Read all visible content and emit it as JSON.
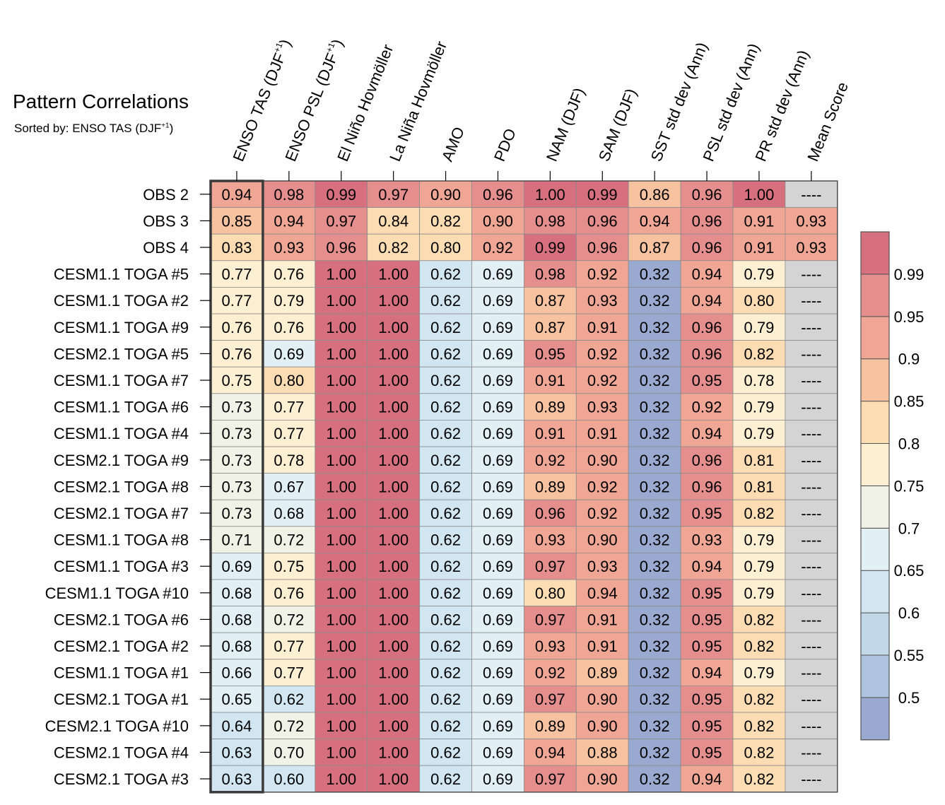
{
  "title": "Pattern Correlations",
  "subtitle": {
    "prefix": "Sorted by: ENSO TAS (DJF",
    "sup": "+1",
    "suffix": ")"
  },
  "chart_data": {
    "type": "heatmap",
    "title": "Pattern Correlations",
    "subtitle": "Sorted by: ENSO TAS (DJF+1)",
    "columns": [
      {
        "text": "ENSO TAS (DJF",
        "sup": "+1",
        "after": ")"
      },
      {
        "text": "ENSO PSL (DJF",
        "sup": "+1",
        "after": ")"
      },
      {
        "text": "El Niño Hovmöller",
        "sup": "",
        "after": ""
      },
      {
        "text": "La Niña Hovmöller",
        "sup": "",
        "after": ""
      },
      {
        "text": "AMO",
        "sup": "",
        "after": ""
      },
      {
        "text": "PDO",
        "sup": "",
        "after": ""
      },
      {
        "text": "NAM (DJF)",
        "sup": "",
        "after": ""
      },
      {
        "text": "SAM (DJF)",
        "sup": "",
        "after": ""
      },
      {
        "text": "SST std dev (Ann)",
        "sup": "",
        "after": ""
      },
      {
        "text": "PSL std dev (Ann)",
        "sup": "",
        "after": ""
      },
      {
        "text": "PR std dev (Ann)",
        "sup": "",
        "after": ""
      },
      {
        "text": "Mean Score",
        "sup": "",
        "after": ""
      }
    ],
    "rows": [
      "OBS 2",
      "OBS 3",
      "OBS 4",
      "CESM1.1 TOGA #5",
      "CESM1.1 TOGA #2",
      "CESM1.1 TOGA #9",
      "CESM2.1 TOGA #5",
      "CESM1.1 TOGA #7",
      "CESM1.1 TOGA #6",
      "CESM1.1 TOGA #4",
      "CESM2.1 TOGA #9",
      "CESM2.1 TOGA #8",
      "CESM2.1 TOGA #7",
      "CESM1.1 TOGA #8",
      "CESM1.1 TOGA #3",
      "CESM1.1 TOGA #10",
      "CESM2.1 TOGA #6",
      "CESM2.1 TOGA #2",
      "CESM1.1 TOGA #1",
      "CESM2.1 TOGA #1",
      "CESM2.1 TOGA #10",
      "CESM2.1 TOGA #4",
      "CESM2.1 TOGA #3"
    ],
    "values": [
      [
        0.94,
        0.98,
        0.99,
        0.97,
        0.9,
        0.96,
        1.0,
        0.99,
        0.86,
        0.96,
        1.0,
        null
      ],
      [
        0.85,
        0.94,
        0.97,
        0.84,
        0.82,
        0.9,
        0.98,
        0.96,
        0.94,
        0.96,
        0.91,
        0.93
      ],
      [
        0.83,
        0.93,
        0.96,
        0.82,
        0.8,
        0.92,
        0.99,
        0.96,
        0.87,
        0.96,
        0.91,
        0.93
      ],
      [
        0.77,
        0.76,
        1.0,
        1.0,
        0.62,
        0.69,
        0.98,
        0.92,
        0.32,
        0.94,
        0.79,
        null
      ],
      [
        0.77,
        0.79,
        1.0,
        1.0,
        0.62,
        0.69,
        0.87,
        0.93,
        0.32,
        0.94,
        0.8,
        null
      ],
      [
        0.76,
        0.76,
        1.0,
        1.0,
        0.62,
        0.69,
        0.87,
        0.91,
        0.32,
        0.96,
        0.79,
        null
      ],
      [
        0.76,
        0.69,
        1.0,
        1.0,
        0.62,
        0.69,
        0.95,
        0.92,
        0.32,
        0.96,
        0.82,
        null
      ],
      [
        0.75,
        0.8,
        1.0,
        1.0,
        0.62,
        0.69,
        0.91,
        0.92,
        0.32,
        0.95,
        0.78,
        null
      ],
      [
        0.73,
        0.77,
        1.0,
        1.0,
        0.62,
        0.69,
        0.89,
        0.93,
        0.32,
        0.92,
        0.79,
        null
      ],
      [
        0.73,
        0.77,
        1.0,
        1.0,
        0.62,
        0.69,
        0.91,
        0.91,
        0.32,
        0.94,
        0.79,
        null
      ],
      [
        0.73,
        0.78,
        1.0,
        1.0,
        0.62,
        0.69,
        0.92,
        0.9,
        0.32,
        0.96,
        0.81,
        null
      ],
      [
        0.73,
        0.67,
        1.0,
        1.0,
        0.62,
        0.69,
        0.89,
        0.92,
        0.32,
        0.96,
        0.81,
        null
      ],
      [
        0.73,
        0.68,
        1.0,
        1.0,
        0.62,
        0.69,
        0.96,
        0.92,
        0.32,
        0.95,
        0.82,
        null
      ],
      [
        0.71,
        0.72,
        1.0,
        1.0,
        0.62,
        0.69,
        0.93,
        0.9,
        0.32,
        0.93,
        0.79,
        null
      ],
      [
        0.69,
        0.75,
        1.0,
        1.0,
        0.62,
        0.69,
        0.97,
        0.93,
        0.32,
        0.94,
        0.79,
        null
      ],
      [
        0.68,
        0.76,
        1.0,
        1.0,
        0.62,
        0.69,
        0.8,
        0.94,
        0.32,
        0.95,
        0.79,
        null
      ],
      [
        0.68,
        0.72,
        1.0,
        1.0,
        0.62,
        0.69,
        0.97,
        0.91,
        0.32,
        0.95,
        0.82,
        null
      ],
      [
        0.68,
        0.77,
        1.0,
        1.0,
        0.62,
        0.69,
        0.93,
        0.91,
        0.32,
        0.95,
        0.82,
        null
      ],
      [
        0.66,
        0.77,
        1.0,
        1.0,
        0.62,
        0.69,
        0.92,
        0.89,
        0.32,
        0.94,
        0.79,
        null
      ],
      [
        0.65,
        0.62,
        1.0,
        1.0,
        0.62,
        0.69,
        0.97,
        0.9,
        0.32,
        0.95,
        0.82,
        null
      ],
      [
        0.64,
        0.72,
        1.0,
        1.0,
        0.62,
        0.69,
        0.89,
        0.9,
        0.32,
        0.95,
        0.82,
        null
      ],
      [
        0.63,
        0.7,
        1.0,
        1.0,
        0.62,
        0.69,
        0.94,
        0.88,
        0.32,
        0.95,
        0.82,
        null
      ],
      [
        0.63,
        0.6,
        1.0,
        1.0,
        0.62,
        0.69,
        0.97,
        0.9,
        0.32,
        0.94,
        0.82,
        null
      ]
    ],
    "missing_text": "----",
    "highlighted_column": "ENSO TAS (DJF+1)",
    "colorbar": {
      "levels": [
        0.5,
        0.55,
        0.6,
        0.65,
        0.7,
        0.75,
        0.8,
        0.85,
        0.9,
        0.95,
        0.99
      ],
      "labels": [
        "0.5",
        "0.55",
        "0.6",
        "0.65",
        "0.7",
        "0.75",
        "0.8",
        "0.85",
        "0.9",
        "0.95",
        "0.99"
      ],
      "colors": [
        "#9aa9d0",
        "#aec4df",
        "#c0d8e8",
        "#d1e6f0",
        "#e2f0f5",
        "#f1f2e6",
        "#fcefd2",
        "#fcdcb3",
        "#f7c29f",
        "#f0a694",
        "#e58e8e",
        "#d6707e"
      ],
      "missing_color": "#d4d4d4"
    }
  }
}
